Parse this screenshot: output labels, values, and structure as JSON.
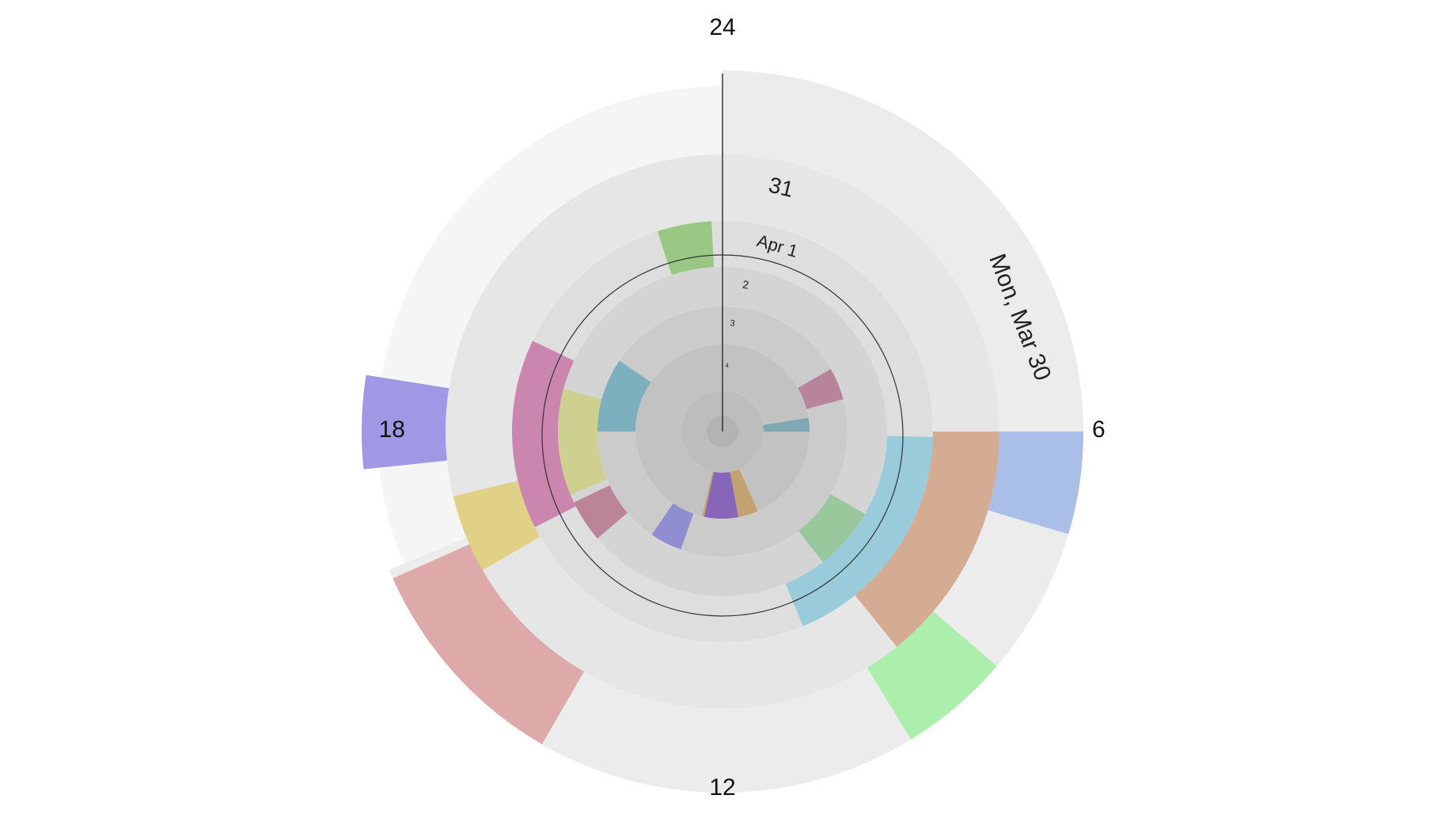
{
  "clock": {
    "hour_labels": [
      "24",
      "6",
      "12",
      "18"
    ],
    "hours_per_revolution": 24,
    "hand_hour": 24,
    "ring_colors": [
      "#ececec",
      "#e6e6e6",
      "#dedede",
      "#d4d4d4",
      "#cbcbcb",
      "#c2c2c2"
    ],
    "gap_color": "#f5f5f5"
  },
  "days": [
    {
      "label": "Mon, Mar 30",
      "start_hour": 0,
      "end_hour": 16.5
    },
    {
      "label": "31",
      "start_hour": 0,
      "end_hour": 24
    },
    {
      "label": "Apr 1",
      "start_hour": 0,
      "end_hour": 24
    },
    {
      "label": "2",
      "start_hour": 0,
      "end_hour": 24
    },
    {
      "label": "3",
      "start_hour": 0,
      "end_hour": 24
    },
    {
      "label": "4",
      "start_hour": 0,
      "end_hour": 24
    }
  ],
  "events": [
    {
      "day": 0,
      "start_hour": 6.0,
      "end_hour": 7.1,
      "color": "#a3bbe6"
    },
    {
      "day": 0,
      "start_hour": 8.7,
      "end_hour": 9.9,
      "color": "#a6eea6"
    },
    {
      "day": 0,
      "start_hour": 14.0,
      "end_hour": 16.4,
      "color": "#dca3a3"
    },
    {
      "day": 0,
      "start_hour": 17.6,
      "end_hour": 18.6,
      "color": "#978fe2"
    },
    {
      "day": 1,
      "start_hour": 6.0,
      "end_hour": 9.4,
      "color": "#d1a78c"
    },
    {
      "day": 1,
      "start_hour": 16.0,
      "end_hour": 17.1,
      "color": "#e1cf7e"
    },
    {
      "day": 2,
      "start_hour": 6.1,
      "end_hour": 10.5,
      "color": "#93c9da"
    },
    {
      "day": 2,
      "start_hour": 16.2,
      "end_hour": 19.7,
      "color": "#c87ea9"
    },
    {
      "day": 2,
      "start_hour": 22.8,
      "end_hour": 23.8,
      "color": "#92c47c"
    },
    {
      "day": 3,
      "start_hour": 8.0,
      "end_hour": 9.5,
      "color": "#95c697"
    },
    {
      "day": 3,
      "start_hour": 15.3,
      "end_hour": 16.3,
      "color": "#b87d92"
    },
    {
      "day": 3,
      "start_hour": 16.5,
      "end_hour": 19.0,
      "color": "#cccf89"
    },
    {
      "day": 4,
      "start_hour": 4.0,
      "end_hour": 5.0,
      "color": "#b67e96"
    },
    {
      "day": 4,
      "start_hour": 13.3,
      "end_hour": 14.3,
      "color": "#8b88d1"
    },
    {
      "day": 4,
      "start_hour": 18.0,
      "end_hour": 20.3,
      "color": "#75aebd"
    },
    {
      "day": 5,
      "start_hour": 5.4,
      "end_hour": 6.0,
      "color": "#7aa6b2"
    },
    {
      "day": 5,
      "start_hour": 10.4,
      "end_hour": 12.9,
      "color": "#c2a06d"
    },
    {
      "day": 5,
      "start_hour": 11.3,
      "end_hour": 12.8,
      "color": "#8260bf"
    }
  ]
}
